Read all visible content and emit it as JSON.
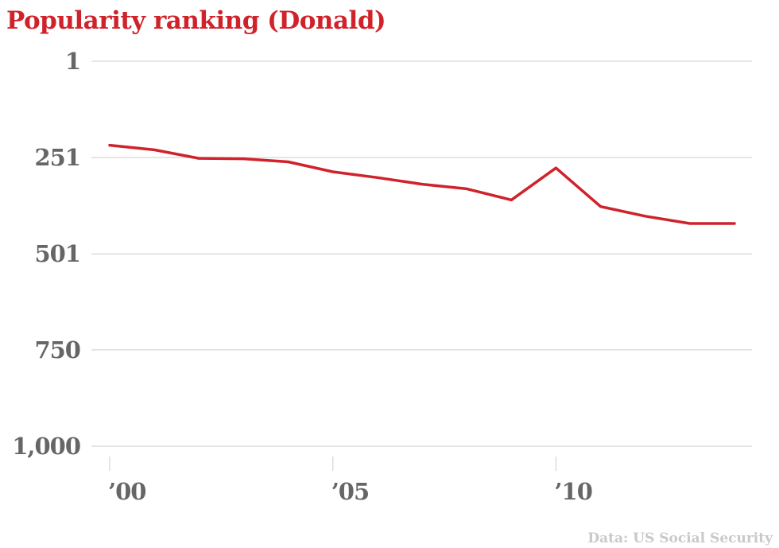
{
  "chart_data": {
    "type": "line",
    "title": "Popularity ranking (Donald)",
    "source": "Data: US Social Security",
    "x": [
      2000,
      2001,
      2002,
      2003,
      2004,
      2005,
      2006,
      2007,
      2008,
      2009,
      2010,
      2011,
      2012,
      2013,
      2014
    ],
    "series": [
      {
        "values": [
          219,
          231,
          253,
          254,
          262,
          288,
          303,
          320,
          332,
          361,
          278,
          378,
          403,
          422,
          422
        ]
      }
    ],
    "ylim": [
      1,
      1000
    ],
    "y_reversed": true,
    "y_ticks": [
      1,
      251,
      501,
      750,
      1000
    ],
    "y_tick_labels": [
      "1",
      "251",
      "501",
      "750",
      "1,000"
    ],
    "x_ticks": [
      2000,
      2005,
      2010
    ],
    "x_tick_labels": [
      "’00",
      "’05",
      "’10"
    ],
    "grid": "horizontal",
    "line_color": "#d0222a",
    "grid_color": "#dddddd",
    "tick_color": "#666666",
    "title_color": "#d0222a",
    "source_color": "#c9c9c9"
  }
}
